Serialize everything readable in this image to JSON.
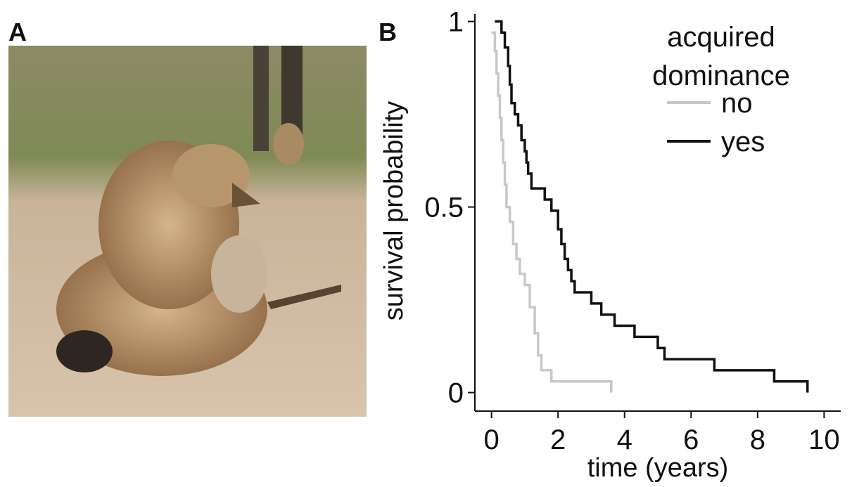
{
  "chart_data": {
    "type": "step",
    "panel_labels": [
      "A",
      "B"
    ],
    "xlabel": "time (years)",
    "ylabel": "survival probability",
    "legend_title": [
      "acquired",
      "dominance"
    ],
    "xlim": [
      -0.5,
      10.5
    ],
    "ylim": [
      -0.05,
      1.02
    ],
    "xticks": [
      0,
      2,
      4,
      6,
      8,
      10
    ],
    "yticks": [
      0,
      0.5,
      1
    ],
    "series": [
      {
        "name": "no",
        "color": "#c8c8c8",
        "x": [
          0,
          0.1,
          0.15,
          0.2,
          0.25,
          0.3,
          0.35,
          0.4,
          0.45,
          0.55,
          0.65,
          0.75,
          0.85,
          1.0,
          1.15,
          1.3,
          1.4,
          1.5,
          1.8,
          3.6
        ],
        "values": [
          0.97,
          0.92,
          0.86,
          0.8,
          0.74,
          0.68,
          0.62,
          0.56,
          0.5,
          0.46,
          0.4,
          0.36,
          0.32,
          0.29,
          0.23,
          0.16,
          0.1,
          0.06,
          0.03,
          0
        ]
      },
      {
        "name": "yes",
        "color": "#111111",
        "x": [
          0.1,
          0.3,
          0.4,
          0.5,
          0.55,
          0.6,
          0.7,
          0.8,
          0.9,
          1.0,
          1.05,
          1.1,
          1.2,
          1.6,
          1.8,
          2.0,
          2.1,
          2.2,
          2.3,
          2.4,
          2.5,
          3.0,
          3.3,
          3.7,
          4.3,
          5.0,
          5.2,
          6.7,
          8.5,
          9.5
        ],
        "values": [
          1,
          0.97,
          0.93,
          0.88,
          0.83,
          0.78,
          0.75,
          0.72,
          0.68,
          0.65,
          0.62,
          0.59,
          0.55,
          0.52,
          0.49,
          0.44,
          0.4,
          0.36,
          0.33,
          0.3,
          0.27,
          0.24,
          0.21,
          0.18,
          0.15,
          0.12,
          0.09,
          0.06,
          0.03,
          0
        ]
      }
    ]
  }
}
